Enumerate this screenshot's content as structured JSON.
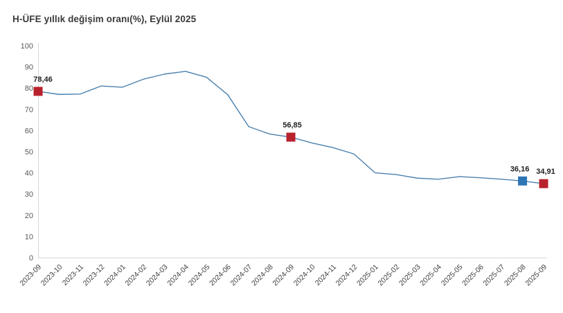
{
  "title": "H-ÜFE yıllık değişim oranı(%), Eylül 2025",
  "colors": {
    "line": "#4a80ad",
    "axis": "#d6d6d6",
    "ytick_text": "#595959",
    "xtick_text": "#404040",
    "label_text": "#1f1f1f",
    "title_text": "#3a3a3a",
    "marker_red": "#b8222d",
    "marker_blue": "#2e75b6",
    "background": "#ffffff"
  },
  "chart_data": {
    "type": "line",
    "title": "H-ÜFE yıllık değişim oranı(%), Eylül 2025",
    "x": [
      "2023-09",
      "2023-10",
      "2023-11",
      "2023-12",
      "2024-01",
      "2024-02",
      "2024-03",
      "2024-04",
      "2024-05",
      "2024-06",
      "2024-07",
      "2024-08",
      "2024-09",
      "2024-10",
      "2024-11",
      "2024-12",
      "2025-01",
      "2025-02",
      "2025-03",
      "2025-04",
      "2025-05",
      "2025-06",
      "2025-07",
      "2025-08",
      "2025-09"
    ],
    "values": [
      78.46,
      77.0,
      77.2,
      81.0,
      80.4,
      84.2,
      86.6,
      87.9,
      85.1,
      76.9,
      61.8,
      58.3,
      56.85,
      54.1,
      51.9,
      48.9,
      40.0,
      39.2,
      37.5,
      37.0,
      38.2,
      37.7,
      37.0,
      36.16,
      34.91
    ],
    "ylim": [
      0,
      100
    ],
    "ytick_step": 10,
    "xlabel": "",
    "ylabel": "",
    "grid": false,
    "legend": false,
    "labeled_points": [
      {
        "index": 0,
        "x": "2023-09",
        "value": 78.46,
        "label": "78,46",
        "color": "#b8222d"
      },
      {
        "index": 12,
        "x": "2024-09",
        "value": 56.85,
        "label": "56,85",
        "color": "#b8222d"
      },
      {
        "index": 23,
        "x": "2025-08",
        "value": 36.16,
        "label": "36,16",
        "color": "#2e75b6"
      },
      {
        "index": 24,
        "x": "2025-09",
        "value": 34.91,
        "label": "34,91",
        "color": "#b8222d"
      }
    ]
  }
}
